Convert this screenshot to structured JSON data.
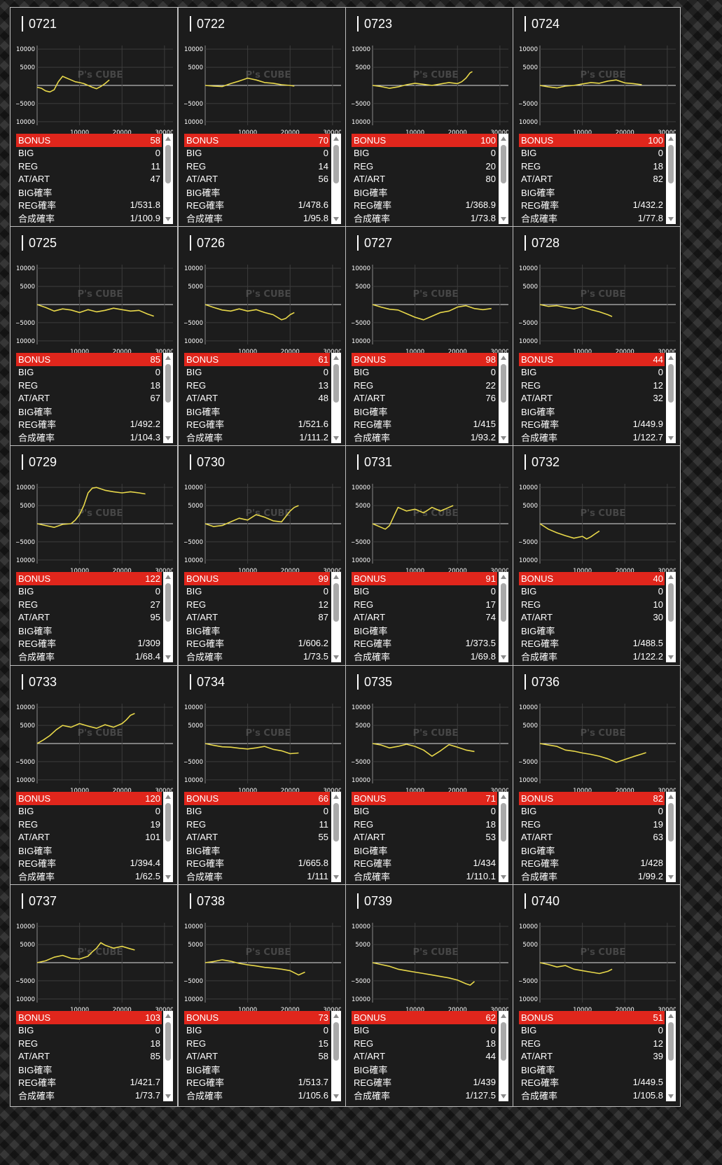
{
  "labels": {
    "bonus": "BONUS",
    "big": "BIG",
    "reg": "REG",
    "at_art": "AT/ART",
    "big_rate": "BIG確率",
    "reg_rate": "REG確率",
    "combined_rate": "合成確率"
  },
  "watermark": "P's CUBE",
  "line_color": "#e8d84a",
  "bonus_color": "#e0261c",
  "axis": {
    "y_ticks": [
      10000,
      5000,
      0,
      -5000,
      -10000
    ],
    "y_tick_labels": [
      "10000",
      "5000",
      "",
      "−5000",
      "−10000"
    ],
    "x_ticks": [
      10000,
      20000,
      30000
    ],
    "x_tick_labels": [
      "10000",
      "20000",
      "30000"
    ],
    "xlim": [
      0,
      32000
    ],
    "ylim": [
      -11000,
      11000
    ]
  },
  "machines": [
    {
      "id": "0721",
      "bonus": "58",
      "big": "0",
      "reg": "11",
      "at": "47",
      "big_rate": "",
      "reg_rate": "1/531.8",
      "combined": "1/100.9",
      "chart_data": {
        "type": "line",
        "x": [
          0,
          1000,
          2000,
          3000,
          4000,
          5000,
          6000,
          7000,
          8000,
          9000,
          10000,
          11000,
          12000,
          13000,
          14000,
          15000,
          16000,
          17000
        ],
        "y": [
          -500,
          -800,
          -1500,
          -1800,
          -1200,
          1000,
          2500,
          2000,
          1500,
          1000,
          800,
          500,
          0,
          -500,
          -900,
          -300,
          500,
          1500
        ]
      }
    },
    {
      "id": "0722",
      "bonus": "70",
      "big": "0",
      "reg": "14",
      "at": "56",
      "big_rate": "",
      "reg_rate": "1/478.6",
      "combined": "1/95.8",
      "chart_data": {
        "type": "line",
        "x": [
          0,
          2000,
          4000,
          6000,
          8000,
          10000,
          12000,
          14000,
          16000,
          18000,
          20000,
          21000
        ],
        "y": [
          0,
          -200,
          -300,
          500,
          1200,
          2000,
          1500,
          800,
          600,
          200,
          0,
          -200
        ]
      }
    },
    {
      "id": "0723",
      "bonus": "100",
      "big": "0",
      "reg": "20",
      "at": "80",
      "big_rate": "",
      "reg_rate": "1/368.9",
      "combined": "1/73.8",
      "chart_data": {
        "type": "line",
        "x": [
          0,
          2000,
          4000,
          6000,
          8000,
          10000,
          12000,
          14000,
          16000,
          18000,
          20000,
          21000,
          22000,
          23000,
          23500
        ],
        "y": [
          0,
          -300,
          -800,
          -400,
          200,
          600,
          300,
          0,
          400,
          800,
          500,
          1000,
          2000,
          3500,
          3800
        ]
      }
    },
    {
      "id": "0724",
      "bonus": "100",
      "big": "0",
      "reg": "18",
      "at": "82",
      "big_rate": "",
      "reg_rate": "1/432.2",
      "combined": "1/77.8",
      "chart_data": {
        "type": "line",
        "x": [
          0,
          2000,
          4000,
          6000,
          8000,
          10000,
          12000,
          14000,
          16000,
          18000,
          20000,
          22000,
          24000
        ],
        "y": [
          0,
          -400,
          -700,
          -200,
          0,
          400,
          800,
          600,
          1200,
          1500,
          700,
          500,
          200
        ]
      }
    },
    {
      "id": "0725",
      "bonus": "85",
      "big": "0",
      "reg": "18",
      "at": "67",
      "big_rate": "",
      "reg_rate": "1/492.2",
      "combined": "1/104.3",
      "chart_data": {
        "type": "line",
        "x": [
          0,
          2000,
          4000,
          6000,
          8000,
          10000,
          12000,
          14000,
          16000,
          18000,
          20000,
          22000,
          24000,
          26000,
          27500
        ],
        "y": [
          0,
          -800,
          -1800,
          -1200,
          -1500,
          -2200,
          -1400,
          -2000,
          -1600,
          -1000,
          -1400,
          -1800,
          -1600,
          -2600,
          -3200
        ]
      }
    },
    {
      "id": "0726",
      "bonus": "61",
      "big": "0",
      "reg": "13",
      "at": "48",
      "big_rate": "",
      "reg_rate": "1/521.6",
      "combined": "1/111.2",
      "chart_data": {
        "type": "line",
        "x": [
          0,
          2000,
          4000,
          6000,
          8000,
          10000,
          12000,
          14000,
          16000,
          18000,
          19000,
          20000,
          21000
        ],
        "y": [
          0,
          -800,
          -1500,
          -1800,
          -1200,
          -1800,
          -1400,
          -2200,
          -2800,
          -4200,
          -3800,
          -2800,
          -2200
        ]
      }
    },
    {
      "id": "0727",
      "bonus": "98",
      "big": "0",
      "reg": "22",
      "at": "76",
      "big_rate": "",
      "reg_rate": "1/415",
      "combined": "1/93.2",
      "chart_data": {
        "type": "line",
        "x": [
          0,
          2000,
          4000,
          6000,
          8000,
          10000,
          12000,
          14000,
          16000,
          18000,
          20000,
          22000,
          24000,
          26000,
          28000
        ],
        "y": [
          0,
          -700,
          -1300,
          -1500,
          -2500,
          -3500,
          -4200,
          -3200,
          -2200,
          -1800,
          -700,
          -300,
          -1100,
          -1400,
          -1100
        ]
      }
    },
    {
      "id": "0728",
      "bonus": "44",
      "big": "0",
      "reg": "12",
      "at": "32",
      "big_rate": "",
      "reg_rate": "1/449.9",
      "combined": "1/122.7",
      "chart_data": {
        "type": "line",
        "x": [
          0,
          2000,
          4000,
          6000,
          8000,
          10000,
          12000,
          14000,
          16000,
          17000
        ],
        "y": [
          0,
          -500,
          -300,
          -800,
          -1200,
          -600,
          -1400,
          -2000,
          -2800,
          -3300
        ]
      }
    },
    {
      "id": "0729",
      "bonus": "122",
      "big": "0",
      "reg": "27",
      "at": "95",
      "big_rate": "",
      "reg_rate": "1/309",
      "combined": "1/68.4",
      "chart_data": {
        "type": "line",
        "x": [
          0,
          2000,
          4000,
          6000,
          8000,
          9000,
          10000,
          11000,
          12000,
          13000,
          14000,
          16000,
          18000,
          20000,
          22000,
          24000,
          25500
        ],
        "y": [
          0,
          -500,
          -1000,
          -200,
          0,
          1000,
          2500,
          5000,
          8500,
          9800,
          10000,
          9200,
          8800,
          8500,
          8800,
          8500,
          8200
        ]
      }
    },
    {
      "id": "0730",
      "bonus": "99",
      "big": "0",
      "reg": "12",
      "at": "87",
      "big_rate": "",
      "reg_rate": "1/606.2",
      "combined": "1/73.5",
      "chart_data": {
        "type": "line",
        "x": [
          0,
          2000,
          4000,
          6000,
          8000,
          10000,
          12000,
          14000,
          16000,
          18000,
          19000,
          20000,
          21000,
          22000
        ],
        "y": [
          0,
          -800,
          -500,
          500,
          1500,
          1000,
          2500,
          1800,
          800,
          500,
          2000,
          3500,
          4500,
          5000
        ]
      }
    },
    {
      "id": "0731",
      "bonus": "91",
      "big": "0",
      "reg": "17",
      "at": "74",
      "big_rate": "",
      "reg_rate": "1/373.5",
      "combined": "1/69.8",
      "chart_data": {
        "type": "line",
        "x": [
          0,
          2000,
          3000,
          4000,
          5000,
          6000,
          7000,
          8000,
          10000,
          12000,
          14000,
          16000,
          18000,
          19000
        ],
        "y": [
          0,
          -1000,
          -1500,
          -500,
          2000,
          4500,
          4000,
          3500,
          4000,
          3000,
          4500,
          3500,
          4500,
          5000
        ]
      }
    },
    {
      "id": "0732",
      "bonus": "40",
      "big": "0",
      "reg": "10",
      "at": "30",
      "big_rate": "",
      "reg_rate": "1/488.5",
      "combined": "1/122.2",
      "chart_data": {
        "type": "line",
        "x": [
          0,
          2000,
          4000,
          6000,
          8000,
          10000,
          11000,
          12000,
          13000,
          14000
        ],
        "y": [
          0,
          -1500,
          -2500,
          -3300,
          -4000,
          -3500,
          -4200,
          -3600,
          -2800,
          -2000
        ]
      }
    },
    {
      "id": "0733",
      "bonus": "120",
      "big": "0",
      "reg": "19",
      "at": "101",
      "big_rate": "",
      "reg_rate": "1/394.4",
      "combined": "1/62.5",
      "chart_data": {
        "type": "line",
        "x": [
          0,
          1500,
          3000,
          4500,
          6000,
          8000,
          10000,
          12000,
          14000,
          16000,
          18000,
          20000,
          21000,
          22000,
          23000
        ],
        "y": [
          0,
          1000,
          2200,
          3800,
          5000,
          4500,
          5500,
          4800,
          4200,
          5200,
          4500,
          5500,
          6500,
          7800,
          8300
        ]
      }
    },
    {
      "id": "0734",
      "bonus": "66",
      "big": "0",
      "reg": "11",
      "at": "55",
      "big_rate": "",
      "reg_rate": "1/665.8",
      "combined": "1/111",
      "chart_data": {
        "type": "line",
        "x": [
          0,
          2000,
          4000,
          6000,
          8000,
          10000,
          12000,
          14000,
          16000,
          18000,
          20000,
          22000
        ],
        "y": [
          0,
          -500,
          -900,
          -1000,
          -1300,
          -1500,
          -1200,
          -800,
          -1600,
          -2000,
          -2800,
          -2600
        ]
      }
    },
    {
      "id": "0735",
      "bonus": "71",
      "big": "0",
      "reg": "18",
      "at": "53",
      "big_rate": "",
      "reg_rate": "1/434",
      "combined": "1/110.1",
      "chart_data": {
        "type": "line",
        "x": [
          0,
          2000,
          4000,
          6000,
          8000,
          10000,
          12000,
          14000,
          16000,
          18000,
          20000,
          22000,
          24000
        ],
        "y": [
          0,
          -400,
          -1200,
          -800,
          -200,
          -800,
          -1800,
          -3500,
          -2000,
          -300,
          -1000,
          -1800,
          -2200
        ]
      }
    },
    {
      "id": "0736",
      "bonus": "82",
      "big": "0",
      "reg": "19",
      "at": "63",
      "big_rate": "",
      "reg_rate": "1/428",
      "combined": "1/99.2",
      "chart_data": {
        "type": "line",
        "x": [
          0,
          2000,
          4000,
          6000,
          8000,
          10000,
          12000,
          14000,
          16000,
          18000,
          20000,
          22000,
          24000,
          25000
        ],
        "y": [
          0,
          -400,
          -800,
          -1800,
          -2100,
          -2600,
          -3000,
          -3500,
          -4200,
          -5200,
          -4400,
          -3600,
          -2900,
          -2500
        ]
      }
    },
    {
      "id": "0737",
      "bonus": "103",
      "big": "0",
      "reg": "18",
      "at": "85",
      "big_rate": "",
      "reg_rate": "1/421.7",
      "combined": "1/73.7",
      "chart_data": {
        "type": "line",
        "x": [
          0,
          2000,
          4000,
          6000,
          8000,
          10000,
          12000,
          13000,
          14000,
          15000,
          16000,
          18000,
          20000,
          22000,
          23000
        ],
        "y": [
          0,
          500,
          1500,
          2000,
          1200,
          1000,
          1800,
          3000,
          4000,
          5500,
          4800,
          4000,
          4500,
          3800,
          3500
        ]
      }
    },
    {
      "id": "0738",
      "bonus": "73",
      "big": "0",
      "reg": "15",
      "at": "58",
      "big_rate": "",
      "reg_rate": "1/513.7",
      "combined": "1/105.6",
      "chart_data": {
        "type": "line",
        "x": [
          0,
          2000,
          4000,
          6000,
          8000,
          10000,
          12000,
          14000,
          16000,
          18000,
          20000,
          22000,
          23500
        ],
        "y": [
          0,
          300,
          800,
          400,
          -200,
          -600,
          -900,
          -1300,
          -1500,
          -1800,
          -2200,
          -3400,
          -2600
        ]
      }
    },
    {
      "id": "0739",
      "bonus": "62",
      "big": "0",
      "reg": "18",
      "at": "44",
      "big_rate": "",
      "reg_rate": "1/439",
      "combined": "1/127.5",
      "chart_data": {
        "type": "line",
        "x": [
          0,
          2000,
          4000,
          6000,
          8000,
          10000,
          12000,
          14000,
          16000,
          18000,
          20000,
          22000,
          23000,
          24000
        ],
        "y": [
          0,
          -500,
          -1000,
          -1800,
          -2200,
          -2600,
          -3000,
          -3400,
          -3800,
          -4200,
          -4800,
          -5800,
          -6200,
          -5200
        ]
      }
    },
    {
      "id": "0740",
      "bonus": "51",
      "big": "0",
      "reg": "12",
      "at": "39",
      "big_rate": "",
      "reg_rate": "1/449.5",
      "combined": "1/105.8",
      "chart_data": {
        "type": "line",
        "x": [
          0,
          2000,
          4000,
          6000,
          8000,
          10000,
          12000,
          14000,
          16000,
          17000
        ],
        "y": [
          0,
          -500,
          -1200,
          -800,
          -1800,
          -2200,
          -2600,
          -3000,
          -2400,
          -1800
        ]
      }
    }
  ]
}
